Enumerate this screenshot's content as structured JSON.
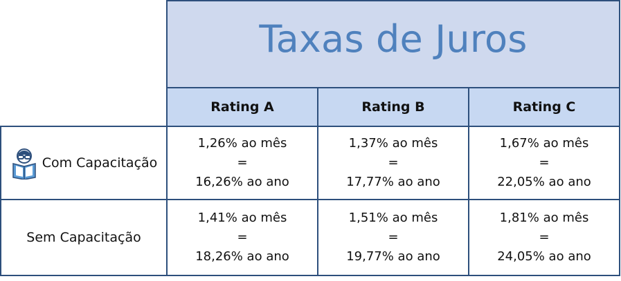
{
  "title": "Taxas de Juros",
  "columns": [
    "Rating A",
    "Rating B",
    "Rating C"
  ],
  "rows": [
    {
      "label": "Com Capacitação",
      "icon": "reader-icon",
      "cells": [
        {
          "monthly": "1,26% ao mês",
          "equals": "=",
          "yearly": "16,26% ao ano"
        },
        {
          "monthly": "1,37% ao mês",
          "equals": "=",
          "yearly": "17,77% ao ano"
        },
        {
          "monthly": "1,67% ao mês",
          "equals": "=",
          "yearly": "22,05% ao ano"
        }
      ]
    },
    {
      "label": "Sem Capacitação",
      "cells": [
        {
          "monthly": "1,41% ao mês",
          "equals": "=",
          "yearly": "18,26% ao ano"
        },
        {
          "monthly": "1,51% ao mês",
          "equals": "=",
          "yearly": "19,77% ao ano"
        },
        {
          "monthly": "1,81% ao mês",
          "equals": "=",
          "yearly": "24,05% ao ano"
        }
      ]
    }
  ],
  "colors": {
    "border": "#2d4f7c",
    "title_bg": "#cfd9ee",
    "title_text": "#4f81bd",
    "header_bg": "#c7d8f2"
  }
}
